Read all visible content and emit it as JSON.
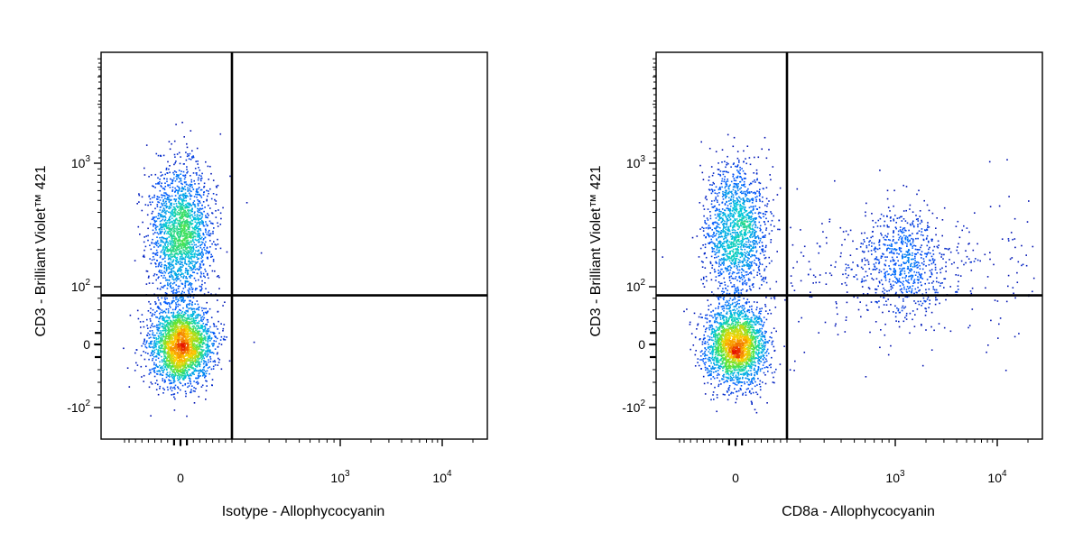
{
  "chart_data": [
    {
      "type": "scatter",
      "title": "",
      "xlabel": "Isotype - Allophycocyanin",
      "ylabel": "CD3 - Brilliant Violet™ 421",
      "x_scale": "biexponential",
      "y_scale": "biexponential",
      "x_ticks": [
        {
          "value": 0,
          "base": "0",
          "exp": ""
        },
        {
          "value": 1000,
          "base": "10",
          "exp": "3"
        },
        {
          "value": 10000,
          "base": "10",
          "exp": "4"
        }
      ],
      "y_ticks": [
        {
          "value": 1000,
          "base": "10",
          "exp": "3"
        },
        {
          "value": 100,
          "base": "10",
          "exp": "2"
        },
        {
          "value": 0,
          "base": "0",
          "exp": ""
        },
        {
          "value": -100,
          "base": "-10",
          "exp": "2"
        }
      ],
      "quadrant_gate": {
        "x": 160,
        "y": 85
      },
      "populations": [
        {
          "x_center": 0,
          "y_center": 0,
          "events": 2600
        },
        {
          "x_center": 0,
          "y_center": 280,
          "events": 2000
        }
      ],
      "outliers": [
        [
          260,
          190
        ],
        [
          230,
          5
        ]
      ],
      "legend": "none",
      "grid": false
    },
    {
      "type": "scatter",
      "title": "",
      "xlabel": "CD8a - Allophycocyanin",
      "ylabel": "CD3 - Brilliant Violet™ 421",
      "x_scale": "biexponential",
      "y_scale": "biexponential",
      "x_ticks": [
        {
          "value": 0,
          "base": "0",
          "exp": ""
        },
        {
          "value": 1000,
          "base": "10",
          "exp": "3"
        },
        {
          "value": 10000,
          "base": "10",
          "exp": "4"
        }
      ],
      "y_ticks": [
        {
          "value": 1000,
          "base": "10",
          "exp": "3"
        },
        {
          "value": 100,
          "base": "10",
          "exp": "2"
        },
        {
          "value": 0,
          "base": "0",
          "exp": ""
        },
        {
          "value": -100,
          "base": "-10",
          "exp": "2"
        }
      ],
      "quadrant_gate": {
        "x": 160,
        "y": 85
      },
      "populations": [
        {
          "x_center": 0,
          "y_center": 0,
          "events": 2400
        },
        {
          "x_center": 0,
          "y_center": 280,
          "events": 1600
        },
        {
          "x_center": 1200,
          "y_center": 160,
          "events": 700
        }
      ],
      "outliers": [
        [
          3000,
          30
        ],
        [
          8000,
          0
        ],
        [
          12000,
          -40
        ],
        [
          16000,
          20
        ],
        [
          600,
          -50
        ],
        [
          20000,
          500
        ]
      ],
      "legend": "none",
      "grid": false
    }
  ]
}
